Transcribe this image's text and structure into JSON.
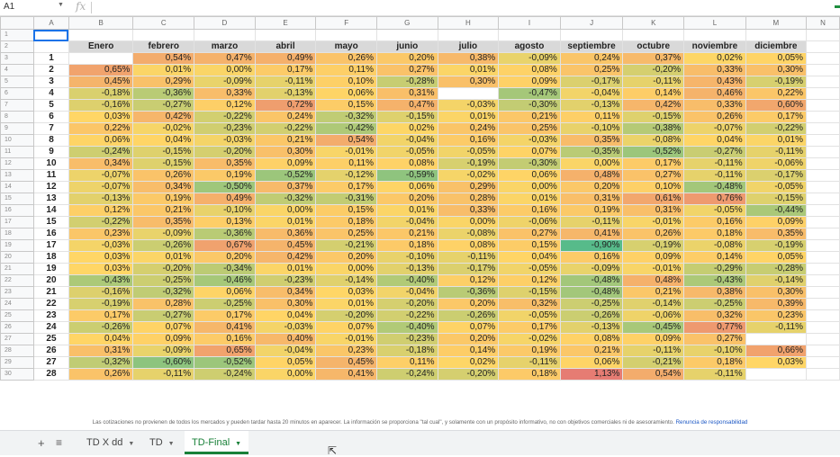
{
  "formula_bar": {
    "cell_ref": "A1",
    "fx_label": "fx",
    "value": ""
  },
  "columns": [
    "A",
    "B",
    "C",
    "D",
    "E",
    "F",
    "G",
    "H",
    "I",
    "J",
    "K",
    "L",
    "M",
    "N"
  ],
  "header_row": [
    "",
    "Enero",
    "febrero",
    "marzo",
    "abril",
    "mayo",
    "junio",
    "julio",
    "agosto",
    "septiembre",
    "octubre",
    "noviembre",
    "diciembre"
  ],
  "data": [
    [
      "1",
      "",
      "0,54%",
      "0,47%",
      "0,49%",
      "0,26%",
      "0,20%",
      "0,38%",
      "-0,09%",
      "0,24%",
      "0,37%",
      "0,02%",
      "0,05%"
    ],
    [
      "2",
      "0,65%",
      "0,01%",
      "0,00%",
      "0,17%",
      "0,11%",
      "0,27%",
      "0,01%",
      "0,08%",
      "0,25%",
      "-0,20%",
      "0,33%",
      "0,30%"
    ],
    [
      "3",
      "0,45%",
      "0,29%",
      "-0,09%",
      "-0,11%",
      "0,10%",
      "-0,28%",
      "0,30%",
      "0,09%",
      "-0,17%",
      "-0,11%",
      "0,43%",
      "-0,19%"
    ],
    [
      "4",
      "-0,18%",
      "-0,36%",
      "0,33%",
      "-0,13%",
      "0,06%",
      "0,31%",
      "",
      "-0,47%",
      "-0,04%",
      "0,14%",
      "0,46%",
      "0,22%"
    ],
    [
      "5",
      "-0,16%",
      "-0,27%",
      "0,12%",
      "0,72%",
      "0,15%",
      "0,47%",
      "-0,03%",
      "-0,30%",
      "-0,13%",
      "0,42%",
      "0,33%",
      "0,60%"
    ],
    [
      "6",
      "0,03%",
      "0,42%",
      "-0,22%",
      "0,24%",
      "-0,32%",
      "-0,15%",
      "0,01%",
      "0,21%",
      "0,11%",
      "-0,15%",
      "0,26%",
      "0,17%"
    ],
    [
      "7",
      "0,22%",
      "-0,02%",
      "-0,23%",
      "-0,22%",
      "-0,42%",
      "0,02%",
      "0,24%",
      "0,25%",
      "-0,10%",
      "-0,38%",
      "-0,07%",
      "-0,22%"
    ],
    [
      "8",
      "0,06%",
      "0,04%",
      "-0,03%",
      "0,21%",
      "0,54%",
      "-0,04%",
      "0,16%",
      "-0,03%",
      "0,35%",
      "-0,08%",
      "0,04%",
      "0,01%"
    ],
    [
      "9",
      "-0,24%",
      "-0,15%",
      "-0,20%",
      "0,30%",
      "-0,01%",
      "-0,05%",
      "-0,05%",
      "0,07%",
      "-0,35%",
      "-0,52%",
      "-0,27%",
      "-0,11%"
    ],
    [
      "10",
      "0,34%",
      "-0,15%",
      "0,35%",
      "0,09%",
      "0,11%",
      "0,08%",
      "-0,19%",
      "-0,30%",
      "0,00%",
      "0,17%",
      "-0,11%",
      "-0,06%"
    ],
    [
      "11",
      "-0,07%",
      "0,26%",
      "0,19%",
      "-0,52%",
      "-0,12%",
      "-0,59%",
      "-0,02%",
      "0,06%",
      "0,48%",
      "0,27%",
      "-0,11%",
      "-0,17%"
    ],
    [
      "12",
      "-0,07%",
      "0,34%",
      "-0,50%",
      "0,37%",
      "0,17%",
      "0,06%",
      "0,29%",
      "0,00%",
      "0,20%",
      "0,10%",
      "-0,48%",
      "-0,05%"
    ],
    [
      "13",
      "-0,13%",
      "0,19%",
      "0,49%",
      "-0,32%",
      "-0,31%",
      "0,20%",
      "0,28%",
      "0,01%",
      "0,31%",
      "0,61%",
      "0,76%",
      "-0,15%"
    ],
    [
      "14",
      "0,12%",
      "0,21%",
      "-0,10%",
      "0,00%",
      "0,15%",
      "0,01%",
      "0,33%",
      "0,16%",
      "0,19%",
      "0,31%",
      "-0,05%",
      "-0,44%"
    ],
    [
      "15",
      "-0,22%",
      "0,35%",
      "0,13%",
      "0,01%",
      "0,18%",
      "-0,04%",
      "0,00%",
      "-0,06%",
      "-0,11%",
      "-0,01%",
      "0,16%",
      "0,09%"
    ],
    [
      "16",
      "0,23%",
      "-0,09%",
      "-0,36%",
      "0,36%",
      "0,25%",
      "0,21%",
      "-0,08%",
      "0,27%",
      "0,41%",
      "0,26%",
      "0,18%",
      "0,35%"
    ],
    [
      "17",
      "-0,03%",
      "-0,26%",
      "0,67%",
      "0,45%",
      "-0,21%",
      "0,18%",
      "0,08%",
      "0,15%",
      "-0,90%",
      "-0,19%",
      "-0,08%",
      "-0,19%"
    ],
    [
      "18",
      "0,03%",
      "0,01%",
      "0,20%",
      "0,42%",
      "0,20%",
      "-0,10%",
      "-0,11%",
      "0,04%",
      "0,16%",
      "0,09%",
      "0,14%",
      "0,05%"
    ],
    [
      "19",
      "0,03%",
      "-0,20%",
      "-0,34%",
      "0,01%",
      "0,00%",
      "-0,13%",
      "-0,17%",
      "-0,05%",
      "-0,09%",
      "-0,01%",
      "-0,29%",
      "-0,28%"
    ],
    [
      "20",
      "-0,43%",
      "-0,25%",
      "-0,46%",
      "-0,23%",
      "-0,14%",
      "-0,40%",
      "0,12%",
      "0,12%",
      "-0,48%",
      "0,48%",
      "-0,43%",
      "-0,14%"
    ],
    [
      "21",
      "-0,16%",
      "-0,32%",
      "0,06%",
      "0,34%",
      "0,03%",
      "-0,04%",
      "-0,36%",
      "-0,15%",
      "-0,48%",
      "0,21%",
      "0,38%",
      "0,30%"
    ],
    [
      "22",
      "-0,19%",
      "0,28%",
      "-0,25%",
      "0,30%",
      "0,01%",
      "-0,20%",
      "0,20%",
      "0,32%",
      "-0,25%",
      "-0,14%",
      "-0,25%",
      "0,39%"
    ],
    [
      "23",
      "0,17%",
      "-0,27%",
      "0,17%",
      "0,04%",
      "-0,20%",
      "-0,22%",
      "-0,26%",
      "-0,05%",
      "-0,26%",
      "-0,06%",
      "0,32%",
      "0,23%"
    ],
    [
      "24",
      "-0,26%",
      "0,07%",
      "0,41%",
      "-0,03%",
      "0,07%",
      "-0,40%",
      "0,07%",
      "0,17%",
      "-0,13%",
      "-0,45%",
      "0,77%",
      "-0,11%"
    ],
    [
      "25",
      "0,04%",
      "0,09%",
      "0,16%",
      "0,40%",
      "-0,01%",
      "-0,23%",
      "0,20%",
      "-0,02%",
      "0,08%",
      "0,09%",
      "0,27%",
      ""
    ],
    [
      "26",
      "0,31%",
      "-0,09%",
      "0,65%",
      "-0,04%",
      "0,23%",
      "-0,18%",
      "0,14%",
      "0,19%",
      "0,21%",
      "-0,11%",
      "-0,10%",
      "0,66%"
    ],
    [
      "27",
      "-0,32%",
      "-0,60%",
      "-0,52%",
      "0,05%",
      "0,45%",
      "0,11%",
      "0,02%",
      "-0,11%",
      "0,06%",
      "-0,21%",
      "0,18%",
      "0,03%"
    ],
    [
      "28",
      "0,26%",
      "-0,11%",
      "-0,24%",
      "0,00%",
      "0,41%",
      "-0,24%",
      "-0,20%",
      "0,18%",
      "1,13%",
      "0,54%",
      "-0,11%",
      ""
    ]
  ],
  "disclaimer": {
    "text": "Las cotizaciones no provienen de todos los mercados y pueden tardar hasta 20 minutos en aparecer. La información se proporciona \"tal cual\", y solamente con un propósito informativo, no con objetivos comerciales ni de asesoramiento.",
    "link": "Renuncia de responsabilidad"
  },
  "tabs": [
    {
      "label": "TD X dd",
      "active": false
    },
    {
      "label": "TD",
      "active": false
    },
    {
      "label": "TD-Final",
      "active": true
    }
  ],
  "colors": {
    "accent_green": "#188038",
    "header_fill": "#d9d9d9",
    "scale_min": "#57bb8a",
    "scale_mid": "#ffd666",
    "scale_max": "#e67c73"
  }
}
